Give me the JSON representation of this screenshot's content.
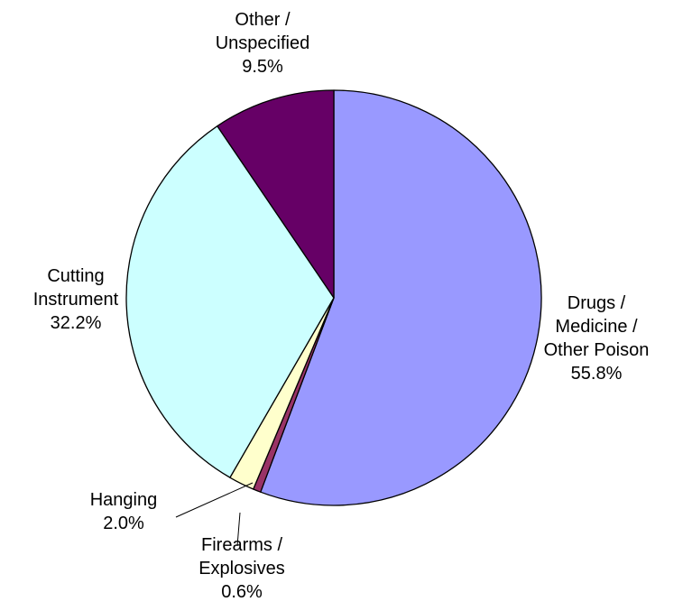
{
  "chart_data": {
    "type": "pie",
    "title": "",
    "start_angle_deg": 0,
    "direction": "clockwise",
    "slices": [
      {
        "label": "Drugs / Medicine / Other Poison",
        "label_lines": [
          "Drugs /",
          "Medicine /",
          "Other Poison"
        ],
        "pct_label": "55.8%",
        "value": 55.8,
        "color": "#9999ff"
      },
      {
        "label": "Firearms / Explosives",
        "label_lines": [
          "Firearms /",
          "Explosives"
        ],
        "pct_label": "0.6%",
        "value": 0.6,
        "color": "#993366"
      },
      {
        "label": "Hanging",
        "label_lines": [
          "Hanging"
        ],
        "pct_label": "2.0%",
        "value": 2.0,
        "color": "#ffffcc"
      },
      {
        "label": "Cutting Instrument",
        "label_lines": [
          "Cutting",
          "Instrument"
        ],
        "pct_label": "32.2%",
        "value": 32.2,
        "color": "#ccffff"
      },
      {
        "label": "Other / Unspecified",
        "label_lines": [
          "Other /",
          "Unspecified"
        ],
        "pct_label": "9.5%",
        "value": 9.5,
        "color": "#660066"
      }
    ],
    "legend": "none",
    "edge_color": "#000000"
  }
}
